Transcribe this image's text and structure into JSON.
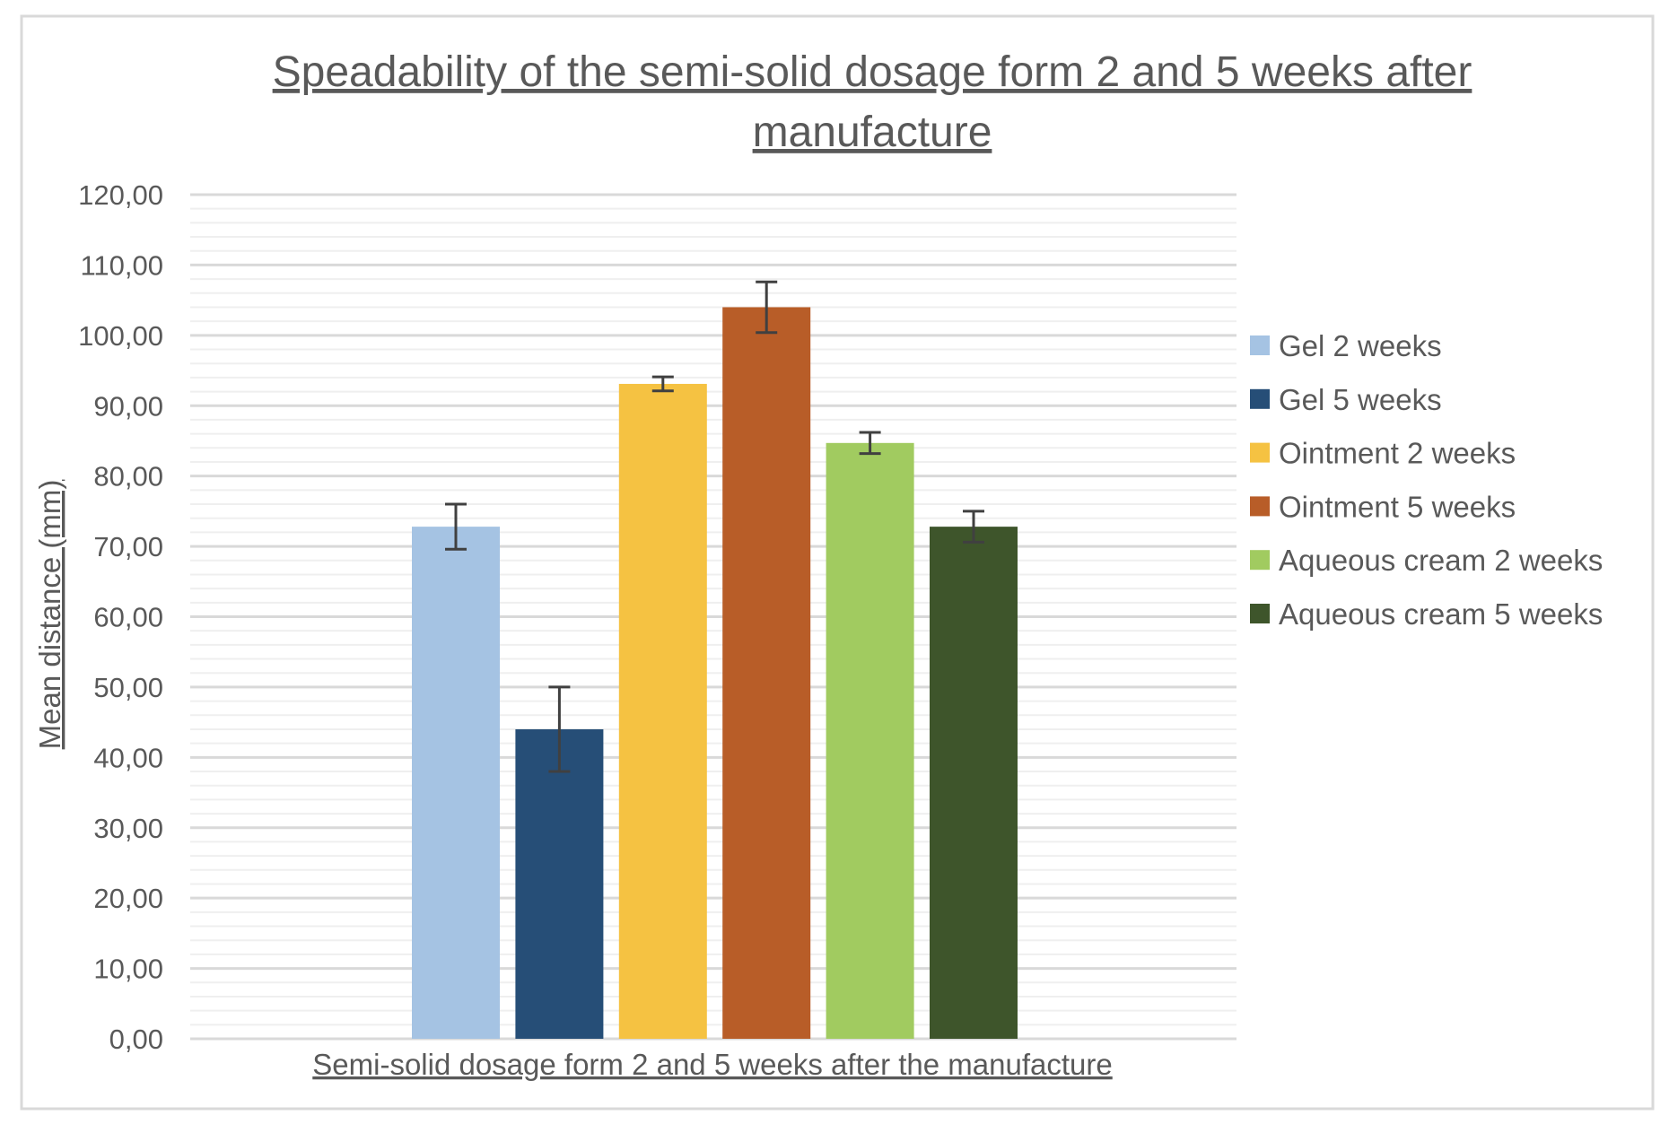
{
  "chart_data": {
    "type": "bar",
    "title": "Speadability of the semi-solid dosage form 2 and 5 weeks after manufacture",
    "title_lines": [
      "Speadability of the semi-solid dosage form 2 and 5 weeks after",
      "manufacture"
    ],
    "xlabel": "Semi-solid dosage form 2 and 5 weeks after the manufacture",
    "ylabel": "Mean distance (mm)",
    "ylim": [
      0,
      120
    ],
    "y_major_step": 10,
    "y_minor_step": 2,
    "y_tick_labels": [
      "0,00",
      "10,00",
      "20,00",
      "30,00",
      "40,00",
      "50,00",
      "60,00",
      "70,00",
      "80,00",
      "90,00",
      "100,00",
      "110,00",
      "120,00"
    ],
    "grid": true,
    "legend_position": "right",
    "series": [
      {
        "name": "Gel 2 weeks",
        "value": 72.8,
        "error": 3.2,
        "color": "#A5C3E3"
      },
      {
        "name": "Gel 5 weeks",
        "value": 44.0,
        "error": 6.0,
        "color": "#264E77"
      },
      {
        "name": "Ointment 2 weeks",
        "value": 93.1,
        "error": 1.0,
        "color": "#F5C242"
      },
      {
        "name": "Ointment 5 weeks",
        "value": 104.0,
        "error": 3.6,
        "color": "#B85D28"
      },
      {
        "name": "Aqueous cream 2 weeks",
        "value": 84.7,
        "error": 1.5,
        "color": "#A1CB60"
      },
      {
        "name": "Aqueous cream 5 weeks",
        "value": 72.8,
        "error": 2.2,
        "color": "#3E552B"
      }
    ]
  }
}
